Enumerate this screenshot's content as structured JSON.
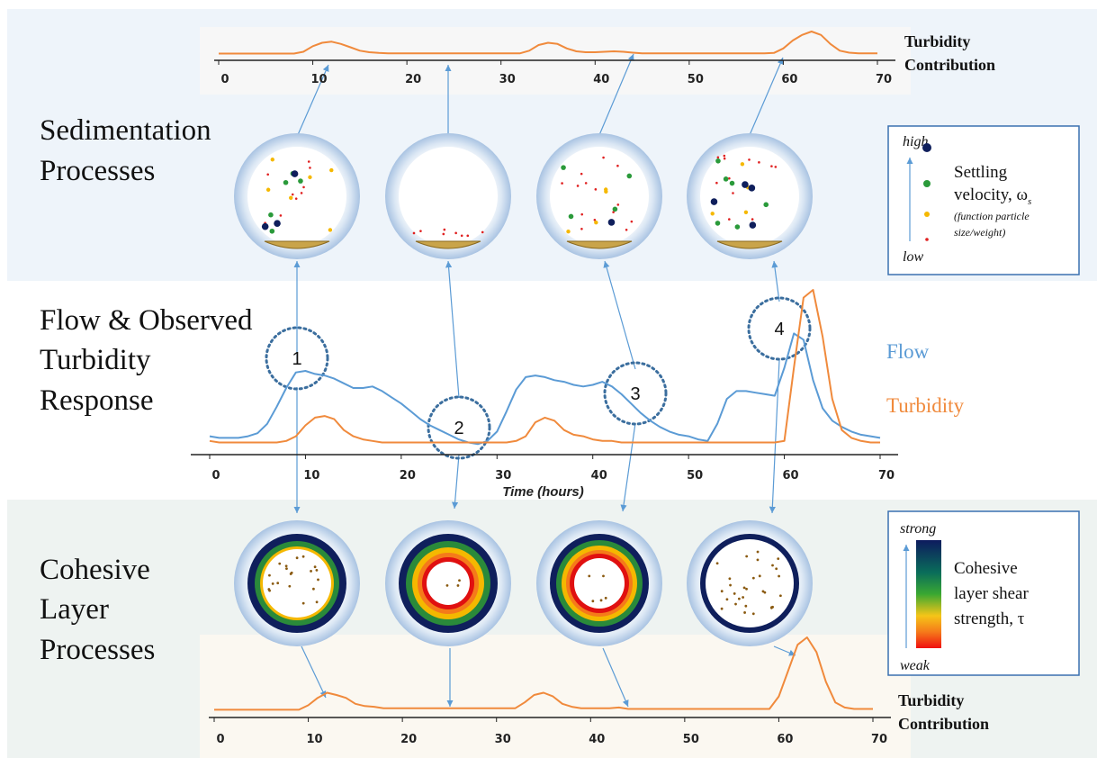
{
  "sections": {
    "sedimentation": [
      "Sedimentation",
      "Processes"
    ],
    "flow": [
      "Flow & Observed",
      "Turbidity",
      "Response"
    ],
    "cohesive": [
      "Cohesive",
      "Layer",
      "Processes"
    ]
  },
  "circle_labels": [
    "1",
    "2",
    "3",
    "4"
  ],
  "settling_legend": {
    "high": "high",
    "low": "low",
    "title": [
      "Settling",
      "velocity, ω"
    ],
    "subscript": "s",
    "note": [
      "(function particle",
      "size/weight)"
    ]
  },
  "strength_legend": {
    "strong": "strong",
    "weak": "weak",
    "title": [
      "Cohesive",
      "layer shear",
      "strength, τ"
    ]
  },
  "chart_data": [
    {
      "type": "line",
      "label": [
        "Turbidity",
        "Contribution"
      ],
      "x": [
        0,
        1,
        2,
        3,
        4,
        5,
        6,
        7,
        8,
        9,
        10,
        11,
        12,
        13,
        14,
        15,
        16,
        17,
        18,
        19,
        20,
        21,
        22,
        23,
        24,
        25,
        26,
        27,
        28,
        29,
        30,
        31,
        32,
        33,
        34,
        35,
        36,
        37,
        38,
        39,
        40,
        41,
        42,
        43,
        44,
        45,
        46,
        47,
        48,
        49,
        50,
        51,
        52,
        53,
        54,
        55,
        56,
        57,
        58,
        59,
        60,
        61,
        62,
        63,
        64,
        65,
        66,
        67,
        68,
        69,
        70
      ],
      "xlim": [
        0,
        70
      ],
      "xticks": [
        0,
        10,
        20,
        30,
        40,
        50,
        60,
        70
      ],
      "ylim": [
        0,
        100
      ],
      "series": [
        {
          "color": "#f08a3c",
          "values": [
            2,
            2,
            2,
            2,
            2,
            2,
            2,
            2,
            2,
            10,
            35,
            50,
            55,
            45,
            30,
            15,
            8,
            5,
            3,
            3,
            3,
            3,
            3,
            3,
            3,
            3,
            3,
            3,
            3,
            3,
            3,
            3,
            3,
            15,
            40,
            50,
            45,
            25,
            12,
            8,
            8,
            10,
            12,
            10,
            6,
            3,
            3,
            3,
            3,
            3,
            3,
            3,
            3,
            3,
            3,
            3,
            3,
            3,
            3,
            5,
            25,
            60,
            85,
            100,
            85,
            45,
            15,
            6,
            3,
            3,
            3
          ]
        }
      ]
    },
    {
      "type": "line",
      "x_label": "Time (hours)",
      "x": [
        0,
        1,
        2,
        3,
        4,
        5,
        6,
        7,
        8,
        9,
        10,
        11,
        12,
        13,
        14,
        15,
        16,
        17,
        18,
        19,
        20,
        21,
        22,
        23,
        24,
        25,
        26,
        27,
        28,
        29,
        30,
        31,
        32,
        33,
        34,
        35,
        36,
        37,
        38,
        39,
        40,
        41,
        42,
        43,
        44,
        45,
        46,
        47,
        48,
        49,
        50,
        51,
        52,
        53,
        54,
        55,
        56,
        57,
        58,
        59,
        60,
        61,
        62,
        63,
        64,
        65,
        66,
        67,
        68,
        69,
        70
      ],
      "xlim": [
        0,
        70
      ],
      "xticks": [
        0,
        10,
        20,
        30,
        40,
        50,
        60,
        70
      ],
      "ylim": [
        0,
        100
      ],
      "series": [
        {
          "name": "Flow",
          "color": "#5b9bd5",
          "values": [
            6,
            5,
            5,
            5,
            6,
            8,
            14,
            25,
            37,
            47,
            48,
            46,
            45,
            43,
            40,
            37,
            37,
            38,
            35,
            31,
            27,
            22,
            17,
            13,
            10,
            7,
            4,
            2,
            1,
            3,
            9,
            22,
            36,
            44,
            45,
            44,
            42,
            41,
            39,
            38,
            39,
            41,
            38,
            33,
            27,
            21,
            16,
            12,
            9,
            7,
            6,
            4,
            3,
            14,
            30,
            35,
            35,
            34,
            33,
            32,
            50,
            72,
            68,
            42,
            24,
            16,
            12,
            9,
            7,
            6,
            5
          ]
        },
        {
          "name": "Turbidity",
          "color": "#f08a3c",
          "values": [
            3,
            2,
            2,
            2,
            2,
            2,
            2,
            2,
            3,
            6,
            13,
            18,
            19,
            17,
            10,
            6,
            4,
            3,
            2,
            2,
            2,
            2,
            2,
            2,
            2,
            2,
            2,
            2,
            2,
            2,
            2,
            2,
            3,
            6,
            15,
            18,
            16,
            10,
            7,
            6,
            4,
            3,
            3,
            2,
            2,
            2,
            2,
            2,
            2,
            2,
            2,
            2,
            2,
            2,
            2,
            2,
            2,
            2,
            2,
            2,
            3,
            50,
            95,
            100,
            70,
            30,
            10,
            5,
            3,
            2,
            2
          ]
        }
      ]
    },
    {
      "type": "line",
      "label": [
        "Turbidity",
        "Contribution"
      ],
      "x": [
        0,
        1,
        2,
        3,
        4,
        5,
        6,
        7,
        8,
        9,
        10,
        11,
        12,
        13,
        14,
        15,
        16,
        17,
        18,
        19,
        20,
        21,
        22,
        23,
        24,
        25,
        26,
        27,
        28,
        29,
        30,
        31,
        32,
        33,
        34,
        35,
        36,
        37,
        38,
        39,
        40,
        41,
        42,
        43,
        44,
        45,
        46,
        47,
        48,
        49,
        50,
        51,
        52,
        53,
        54,
        55,
        56,
        57,
        58,
        59,
        60,
        61,
        62,
        63,
        64,
        65,
        66,
        67,
        68,
        69,
        70
      ],
      "xlim": [
        0,
        70
      ],
      "xticks": [
        0,
        10,
        20,
        30,
        40,
        50,
        60,
        70
      ],
      "ylim": [
        0,
        100
      ],
      "series": [
        {
          "color": "#f08a3c",
          "values": [
            2,
            2,
            2,
            2,
            2,
            2,
            2,
            2,
            2,
            2,
            8,
            18,
            25,
            22,
            18,
            10,
            7,
            6,
            4,
            4,
            4,
            4,
            4,
            4,
            4,
            4,
            4,
            4,
            4,
            4,
            4,
            4,
            4,
            12,
            22,
            25,
            20,
            10,
            6,
            4,
            4,
            4,
            4,
            5,
            3,
            3,
            3,
            3,
            3,
            3,
            3,
            3,
            3,
            3,
            3,
            3,
            3,
            3,
            3,
            3,
            20,
            55,
            90,
            100,
            80,
            40,
            12,
            5,
            3,
            3,
            3
          ]
        }
      ]
    }
  ]
}
